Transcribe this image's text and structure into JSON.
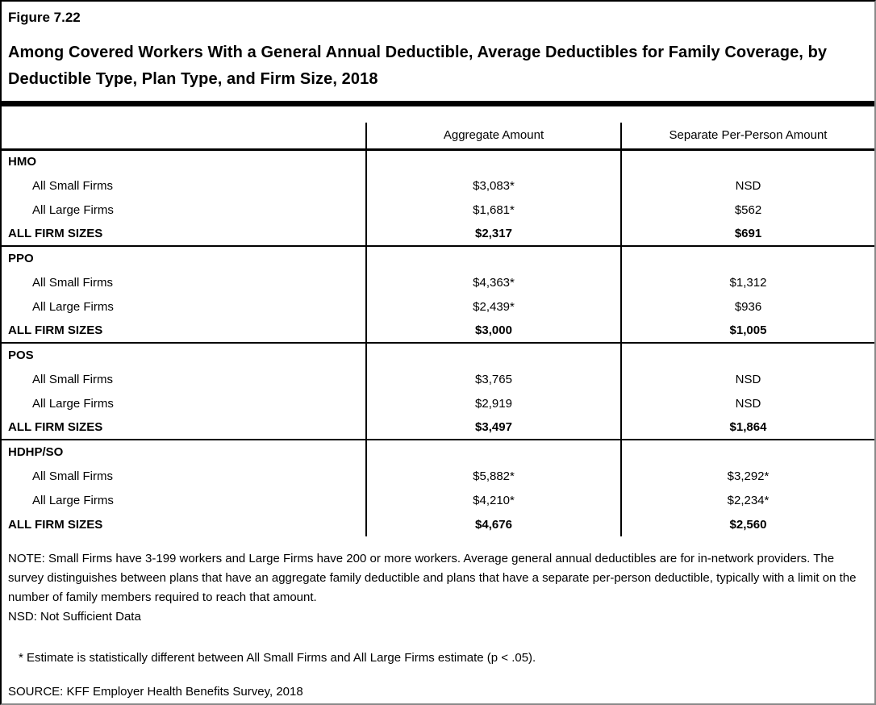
{
  "figure_label": "Figure 7.22",
  "title": "Among Covered Workers With a General Annual Deductible, Average Deductibles for Family Coverage, by Deductible Type, Plan Type, and Firm Size, 2018",
  "table": {
    "row_header_label": "",
    "columns": [
      "Aggregate Amount",
      "Separate Per-Person Amount"
    ],
    "sections": [
      {
        "name": "HMO",
        "rows": [
          {
            "label": "All Small Firms",
            "aggregate": "$3,083*",
            "separate": "NSD",
            "bold": false
          },
          {
            "label": "All Large Firms",
            "aggregate": "$1,681*",
            "separate": "$562",
            "bold": false
          },
          {
            "label": "ALL FIRM SIZES",
            "aggregate": "$2,317",
            "separate": "$691",
            "bold": true
          }
        ]
      },
      {
        "name": "PPO",
        "rows": [
          {
            "label": "All Small Firms",
            "aggregate": "$4,363*",
            "separate": "$1,312",
            "bold": false
          },
          {
            "label": "All Large Firms",
            "aggregate": "$2,439*",
            "separate": "$936",
            "bold": false
          },
          {
            "label": "ALL FIRM SIZES",
            "aggregate": "$3,000",
            "separate": "$1,005",
            "bold": true
          }
        ]
      },
      {
        "name": "POS",
        "rows": [
          {
            "label": "All Small Firms",
            "aggregate": "$3,765",
            "separate": "NSD",
            "bold": false
          },
          {
            "label": "All Large Firms",
            "aggregate": "$2,919",
            "separate": "NSD",
            "bold": false
          },
          {
            "label": "ALL FIRM SIZES",
            "aggregate": "$3,497",
            "separate": "$1,864",
            "bold": true
          }
        ]
      },
      {
        "name": "HDHP/SO",
        "rows": [
          {
            "label": "All Small Firms",
            "aggregate": "$5,882*",
            "separate": "$3,292*",
            "bold": false
          },
          {
            "label": "All Large Firms",
            "aggregate": "$4,210*",
            "separate": "$2,234*",
            "bold": false
          },
          {
            "label": "ALL FIRM SIZES",
            "aggregate": "$4,676",
            "separate": "$2,560",
            "bold": true
          }
        ]
      }
    ]
  },
  "notes": {
    "note": "NOTE: Small Firms have 3-199 workers and Large Firms have 200 or more workers. Average general annual deductibles are for in-network providers. The survey distinguishes between plans that have an aggregate family deductible and plans that have a separate per-person deductible, typically with a limit on the number of family members required to reach that amount.",
    "nsd": "NSD: Not Sufficient Data",
    "asterisk": "* Estimate is statistically different between All Small Firms and All Large Firms estimate (p < .05).",
    "source": "SOURCE: KFF Employer Health Benefits Survey, 2018"
  },
  "colors": {
    "text": "#000000",
    "background": "#ffffff",
    "border_dark": "#000000",
    "border_shadow": "#8a8a8a"
  }
}
